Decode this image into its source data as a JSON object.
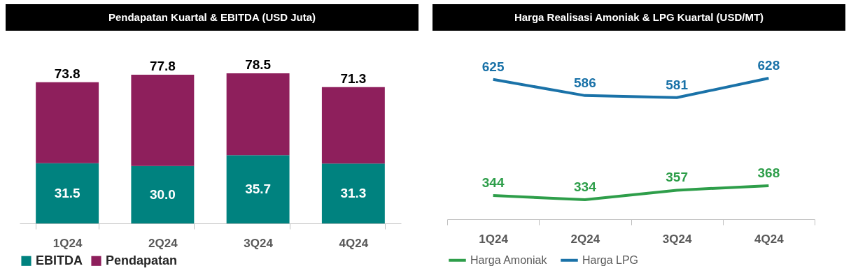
{
  "chart_data": [
    {
      "type": "bar",
      "title": "Pendapatan Kuartal & EBITDA (USD Juta)",
      "categories": [
        "1Q24",
        "2Q24",
        "3Q24",
        "4Q24"
      ],
      "stacked": true,
      "legend": "bottom",
      "series": [
        {
          "name": "EBITDA",
          "color": "#00827f",
          "values": [
            31.5,
            30.0,
            35.7,
            31.3
          ],
          "value_labels": [
            "31.5",
            "30.0",
            "35.7",
            "31.3"
          ]
        },
        {
          "name": "Pendapatan",
          "color": "#8e1f5c",
          "values": [
            42.3,
            47.8,
            42.8,
            40.0
          ]
        }
      ],
      "totals": [
        "73.8",
        "77.8",
        "78.5",
        "71.3"
      ]
    },
    {
      "type": "line",
      "title": "Harga Realisasi Amoniak & LPG Kuartal (USD/MT)",
      "categories": [
        "1Q24",
        "2Q24",
        "3Q24",
        "4Q24"
      ],
      "legend": "bottom",
      "data_labels": true,
      "series": [
        {
          "name": "Harga Amoniak",
          "color": "#2e9e4a",
          "values": [
            344,
            334,
            357,
            368
          ]
        },
        {
          "name": "Harga LPG",
          "color": "#1a72a8",
          "values": [
            625,
            586,
            581,
            628
          ]
        }
      ]
    }
  ]
}
